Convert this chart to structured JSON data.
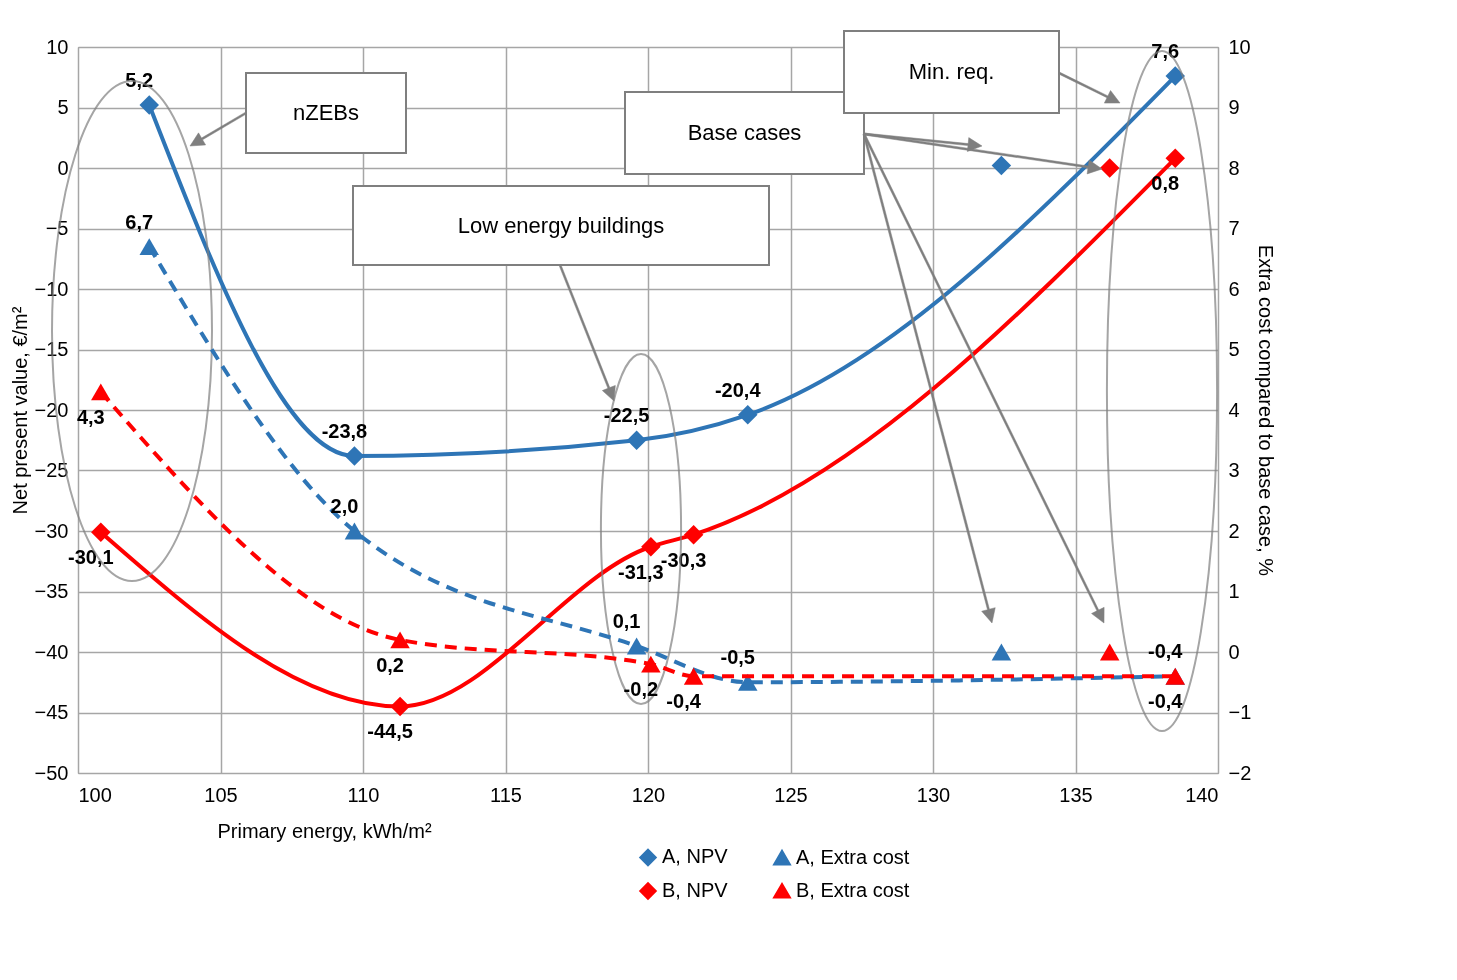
{
  "chart_data": {
    "type": "line",
    "xlabel": "Primary energy, kWh/m²",
    "ylabel": "Net present value, €/m²",
    "y2label": "Extra cost compared to base case, %",
    "xlim": [
      100,
      140
    ],
    "xticks": [
      100,
      105,
      110,
      115,
      120,
      125,
      130,
      135,
      140
    ],
    "ylim": [
      -50,
      10
    ],
    "yticks": [
      -50,
      -45,
      -40,
      -35,
      -30,
      -25,
      -20,
      -15,
      -10,
      -5,
      0,
      5,
      10
    ],
    "y2lim": [
      -2,
      10
    ],
    "y2ticks": [
      -2,
      -1,
      0,
      1,
      2,
      3,
      4,
      5,
      6,
      7,
      8,
      9,
      10
    ],
    "grid": true,
    "legend": "bottom right",
    "annotations": [
      "nZEBs",
      "Low energy buildings",
      "Base cases",
      "Min. req."
    ],
    "series": [
      {
        "name": "A, NPV",
        "color": "#2e75b6",
        "marker": "diamond",
        "line_style": "solid",
        "x": [
          102.5,
          109.7,
          119.6,
          123.5,
          138.5
        ],
        "values": [
          5.2,
          -23.8,
          -22.5,
          -20.4,
          7.6
        ],
        "value_labels": [
          "5,2",
          "-23,8",
          "-22,5",
          "-20,4",
          "7,6"
        ]
      },
      {
        "name": "B, NPV",
        "color": "#ff0000",
        "marker": "diamond",
        "line_style": "solid",
        "x": [
          100.8,
          111.3,
          120.1,
          121.6,
          138.5
        ],
        "values": [
          -30.1,
          -44.5,
          -31.3,
          -30.3,
          0.8
        ],
        "value_labels": [
          "-30,1",
          "-44,5",
          "-31,3",
          "-30,3",
          "0,8"
        ]
      },
      {
        "name": "A, Extra cost",
        "color": "#2e75b6",
        "marker": "triangle",
        "line_style": "dashed",
        "axis": "y2",
        "x": [
          102.5,
          109.7,
          119.6,
          123.5,
          138.5
        ],
        "values": [
          6.7,
          2.0,
          0.1,
          -0.5,
          -0.4
        ],
        "value_labels": [
          "6,7",
          "2,0",
          "0,1",
          "-0,5",
          "-0,4"
        ]
      },
      {
        "name": "B, Extra cost",
        "color": "#ff0000",
        "marker": "triangle",
        "line_style": "dashed",
        "axis": "y2",
        "x": [
          100.8,
          111.3,
          120.1,
          121.6,
          138.5
        ],
        "values": [
          4.3,
          0.2,
          -0.2,
          -0.4,
          -0.4
        ],
        "value_labels": [
          "4,3",
          "0,2",
          "-0,2",
          "-0,4",
          "-0,4"
        ]
      },
      {
        "type": "scatter",
        "color": "#2e75b6",
        "marker": "diamond",
        "x": [
          132.4
        ],
        "values": [
          0.2
        ]
      },
      {
        "type": "scatter",
        "color": "#ff0000",
        "marker": "diamond",
        "x": [
          136.2
        ],
        "values": [
          0
        ]
      },
      {
        "type": "scatter",
        "color": "#2e75b6",
        "marker": "triangle",
        "axis": "y2",
        "x": [
          132.4
        ],
        "values": [
          0
        ]
      },
      {
        "type": "scatter",
        "color": "#ff0000",
        "marker": "triangle",
        "axis": "y2",
        "x": [
          136.2
        ],
        "values": [
          0
        ]
      }
    ]
  }
}
